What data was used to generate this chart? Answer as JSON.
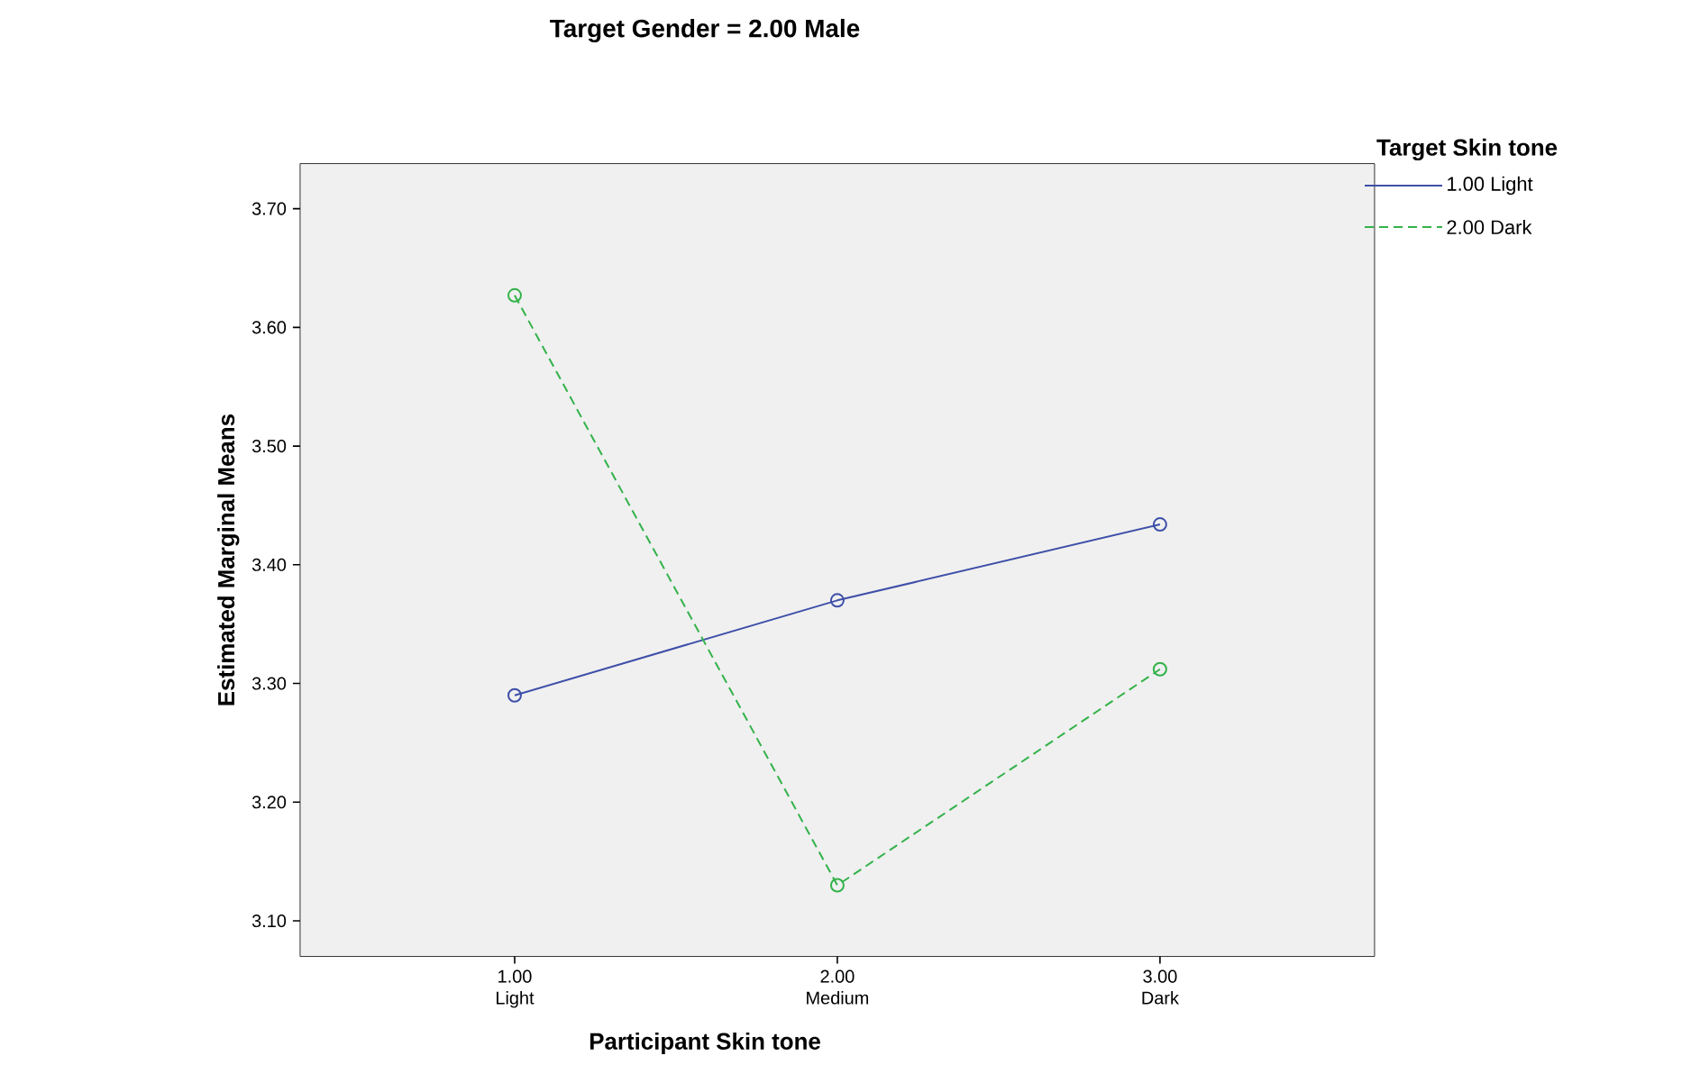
{
  "chart_data": {
    "type": "line",
    "title": "Target Gender = 2.00 Male",
    "xlabel": "Participant Skin tone",
    "ylabel": "Estimated Marginal Means",
    "legend_title": "Target Skin tone",
    "legend": "top right",
    "marker": "circle",
    "grid": false,
    "x": [
      1,
      2,
      3
    ],
    "xlim": [
      0.335,
      3.665
    ],
    "xticks": [
      {
        "value": 1,
        "label": "1.00 Light"
      },
      {
        "value": 2,
        "label": "2.00 Medium"
      },
      {
        "value": 3,
        "label": "3.00 Dark"
      }
    ],
    "ylim": [
      3.07,
      3.738
    ],
    "yticks": [
      {
        "value": 3.1,
        "label": "3.10"
      },
      {
        "value": 3.2,
        "label": "3.20"
      },
      {
        "value": 3.3,
        "label": "3.30"
      },
      {
        "value": 3.4,
        "label": "3.40"
      },
      {
        "value": 3.5,
        "label": "3.50"
      },
      {
        "value": 3.6,
        "label": "3.60"
      },
      {
        "value": 3.7,
        "label": "3.70"
      }
    ],
    "series": [
      {
        "name": "1.00 Light",
        "color": "#3e4fa8",
        "line_style": "solid",
        "values": [
          3.29,
          3.37,
          3.434
        ]
      },
      {
        "name": "2.00 Dark",
        "color": "#33b24a",
        "line_style": "dashed",
        "values": [
          3.627,
          3.13,
          3.312
        ]
      }
    ]
  }
}
